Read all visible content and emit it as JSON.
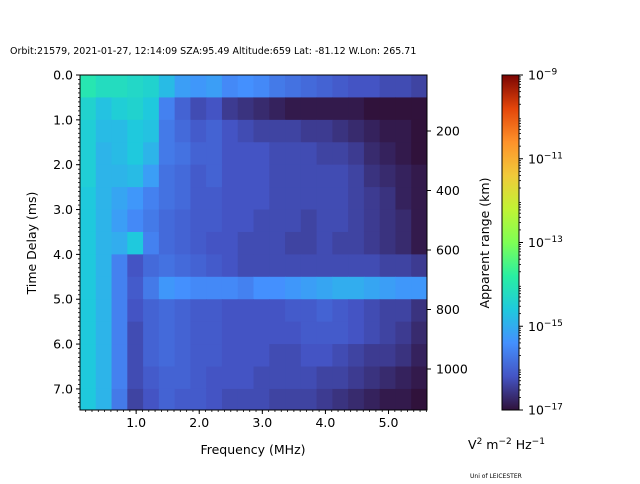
{
  "chart_data": {
    "type": "heatmap",
    "title": "Orbit:21579, 2021-01-27, 12:14:09 SZA:95.49 Altitude:659 Lat: -81.12 W.Lon: 265.71",
    "xlabel": "Frequency (MHz)",
    "ylabel": "Time Delay (ms)",
    "y2label": "Apparent range (km)",
    "xlim": [
      0.11,
      5.61
    ],
    "ylim": [
      7.47,
      0.0
    ],
    "x_ticks": [
      1.0,
      2.0,
      3.0,
      4.0,
      5.0
    ],
    "x_tick_labels": [
      "1.0",
      "2.0",
      "3.0",
      "4.0",
      "5.0"
    ],
    "y_ticks": [
      0.0,
      1.0,
      2.0,
      3.0,
      4.0,
      5.0,
      6.0,
      7.0
    ],
    "y_tick_labels": [
      "0.0",
      "1.0",
      "2.0",
      "3.0",
      "4.0",
      "5.0",
      "6.0",
      "7.0"
    ],
    "y2_ticks": [
      200,
      400,
      600,
      800,
      1000
    ],
    "y2_tick_labels": [
      "200",
      "400",
      "600",
      "800",
      "1000"
    ],
    "colorbar": {
      "label_base": "V",
      "label_exp1": "2",
      "label_mid": " m",
      "label_exp2": "−2",
      "label_end": " Hz",
      "label_exp3": "−1",
      "scale": "log",
      "range_log10": [
        -17,
        -9
      ],
      "ticks": [
        {
          "base": "10",
          "exp": "−9",
          "log10": -9
        },
        {
          "base": "10",
          "exp": "−11",
          "log10": -11
        },
        {
          "base": "10",
          "exp": "−13",
          "log10": -13
        },
        {
          "base": "10",
          "exp": "−15",
          "log10": -15
        },
        {
          "base": "10",
          "exp": "−17",
          "log10": -17
        }
      ],
      "colormap": [
        "#30123b",
        "#4454c4",
        "#4490fe",
        "#1fc9dd",
        "#29efa2",
        "#7eff55",
        "#c1f334",
        "#f1ca3a",
        "#fe922a",
        "#e4460a",
        "#7a0403"
      ]
    },
    "freq_bin_start": 0.11,
    "freq_bin_step": 0.25,
    "delay_bin_step": 0.5,
    "z_log10": [
      [
        -14.0,
        -14.2,
        -14.2,
        -14.3,
        -14.4,
        -14.8,
        -15.2,
        -15.3,
        -15.2,
        -15.5,
        -15.4,
        -15.5,
        -15.7,
        -15.8,
        -15.9,
        -16.0,
        -16.1,
        -16.2,
        -16.2,
        -16.3,
        -16.3,
        -16.4
      ],
      [
        -14.4,
        -14.7,
        -14.5,
        -14.4,
        -14.6,
        -15.6,
        -16.0,
        -16.3,
        -16.2,
        -16.5,
        -16.6,
        -16.7,
        -16.8,
        -16.9,
        -16.9,
        -16.9,
        -16.9,
        -16.9,
        -17.0,
        -17.0,
        -17.0,
        -17.0
      ],
      [
        -14.5,
        -14.8,
        -14.8,
        -14.6,
        -14.7,
        -15.7,
        -15.9,
        -16.1,
        -16.0,
        -16.2,
        -16.3,
        -16.4,
        -16.4,
        -16.4,
        -16.5,
        -16.5,
        -16.6,
        -16.7,
        -16.8,
        -16.9,
        -16.9,
        -17.0
      ],
      [
        -14.5,
        -14.9,
        -14.8,
        -14.6,
        -14.9,
        -15.7,
        -15.8,
        -16.0,
        -16.0,
        -16.2,
        -16.2,
        -16.2,
        -16.3,
        -16.3,
        -16.3,
        -16.4,
        -16.4,
        -16.5,
        -16.7,
        -16.8,
        -16.9,
        -17.0
      ],
      [
        -14.5,
        -14.9,
        -14.9,
        -14.8,
        -15.2,
        -15.8,
        -15.9,
        -16.1,
        -16.0,
        -16.2,
        -16.2,
        -16.2,
        -16.3,
        -16.3,
        -16.3,
        -16.3,
        -16.3,
        -16.4,
        -16.6,
        -16.7,
        -16.8,
        -16.9
      ],
      [
        -14.6,
        -14.9,
        -15.1,
        -15.3,
        -15.6,
        -15.8,
        -15.9,
        -16.1,
        -16.1,
        -16.2,
        -16.2,
        -16.2,
        -16.3,
        -16.3,
        -16.3,
        -16.3,
        -16.3,
        -16.4,
        -16.5,
        -16.6,
        -16.8,
        -16.9
      ],
      [
        -14.6,
        -14.9,
        -15.2,
        -15.5,
        -15.7,
        -15.9,
        -16.0,
        -16.1,
        -16.1,
        -16.2,
        -16.2,
        -16.3,
        -16.3,
        -16.3,
        -16.4,
        -16.3,
        -16.3,
        -16.4,
        -16.5,
        -16.6,
        -16.7,
        -16.9
      ],
      [
        -14.6,
        -14.9,
        -15.0,
        -14.6,
        -15.6,
        -15.9,
        -16.0,
        -16.1,
        -16.2,
        -16.2,
        -16.3,
        -16.3,
        -16.3,
        -16.4,
        -16.4,
        -16.3,
        -16.4,
        -16.4,
        -16.5,
        -16.6,
        -16.7,
        -16.9
      ],
      [
        -14.6,
        -14.9,
        -15.6,
        -16.2,
        -15.9,
        -15.8,
        -15.9,
        -16.0,
        -16.1,
        -16.2,
        -16.3,
        -16.3,
        -16.3,
        -16.3,
        -16.3,
        -16.3,
        -16.3,
        -16.3,
        -16.3,
        -16.4,
        -16.4,
        -16.5
      ],
      [
        -14.6,
        -14.9,
        -15.6,
        -16.1,
        -15.7,
        -15.3,
        -15.4,
        -15.5,
        -15.5,
        -15.5,
        -15.6,
        -15.4,
        -15.4,
        -15.3,
        -15.2,
        -15.1,
        -15.0,
        -15.0,
        -15.1,
        -15.2,
        -15.3,
        -15.3
      ],
      [
        -14.6,
        -14.9,
        -15.6,
        -16.2,
        -16.0,
        -15.9,
        -16.0,
        -16.1,
        -16.1,
        -16.2,
        -16.2,
        -16.2,
        -16.2,
        -16.1,
        -16.1,
        -16.0,
        -16.1,
        -16.2,
        -16.3,
        -16.4,
        -16.4,
        -16.6
      ],
      [
        -14.6,
        -14.9,
        -15.6,
        -16.3,
        -16.0,
        -15.9,
        -16.0,
        -16.1,
        -16.1,
        -16.2,
        -16.2,
        -16.2,
        -16.2,
        -16.2,
        -16.1,
        -16.1,
        -16.1,
        -16.2,
        -16.3,
        -16.4,
        -16.5,
        -16.7
      ],
      [
        -14.6,
        -14.9,
        -15.6,
        -16.3,
        -16.0,
        -15.9,
        -16.0,
        -16.1,
        -16.1,
        -16.2,
        -16.2,
        -16.2,
        -16.3,
        -16.3,
        -16.2,
        -16.2,
        -16.3,
        -16.4,
        -16.5,
        -16.5,
        -16.6,
        -16.8
      ],
      [
        -14.6,
        -14.9,
        -15.6,
        -16.3,
        -16.1,
        -16.0,
        -16.0,
        -16.1,
        -16.2,
        -16.2,
        -16.2,
        -16.3,
        -16.3,
        -16.3,
        -16.3,
        -16.4,
        -16.4,
        -16.5,
        -16.6,
        -16.7,
        -16.8,
        -16.9
      ],
      [
        -14.6,
        -14.9,
        -15.7,
        -16.4,
        -16.2,
        -16.0,
        -16.1,
        -16.1,
        -16.2,
        -16.3,
        -16.3,
        -16.3,
        -16.4,
        -16.4,
        -16.4,
        -16.5,
        -16.6,
        -16.7,
        -16.8,
        -16.9,
        -16.9,
        -17.0
      ]
    ]
  },
  "footer": {
    "credit": "Uni of LEICESTER"
  }
}
